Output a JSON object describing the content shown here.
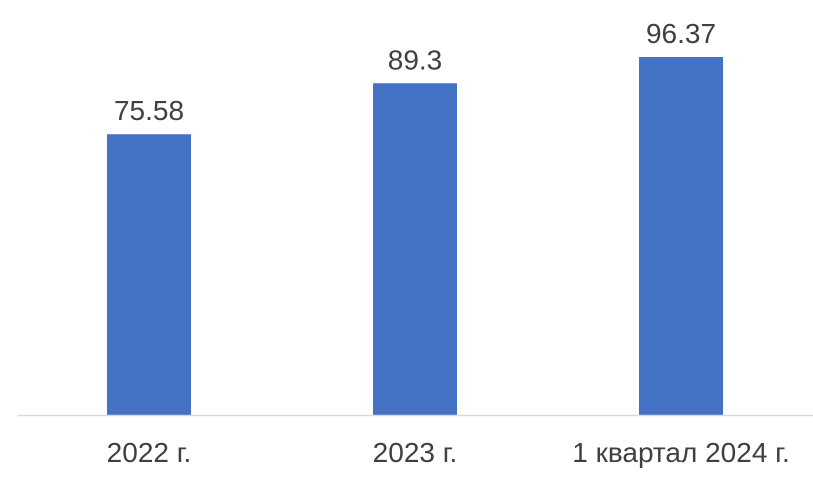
{
  "chart_data": {
    "type": "bar",
    "categories": [
      "2022 г.",
      "2023 г.",
      "1 квартал 2024 г."
    ],
    "values": [
      75.58,
      89.3,
      96.37
    ],
    "data_labels": [
      "75.58",
      "89.3",
      "96.37"
    ],
    "title": "",
    "xlabel": "",
    "ylabel": "",
    "ylim": [
      0,
      100
    ],
    "grid": false,
    "legend": "none",
    "y_axis_visible": false,
    "bar_color": "#4472C4",
    "axis_color": "#D9D9D9",
    "text_color": "#404040"
  }
}
